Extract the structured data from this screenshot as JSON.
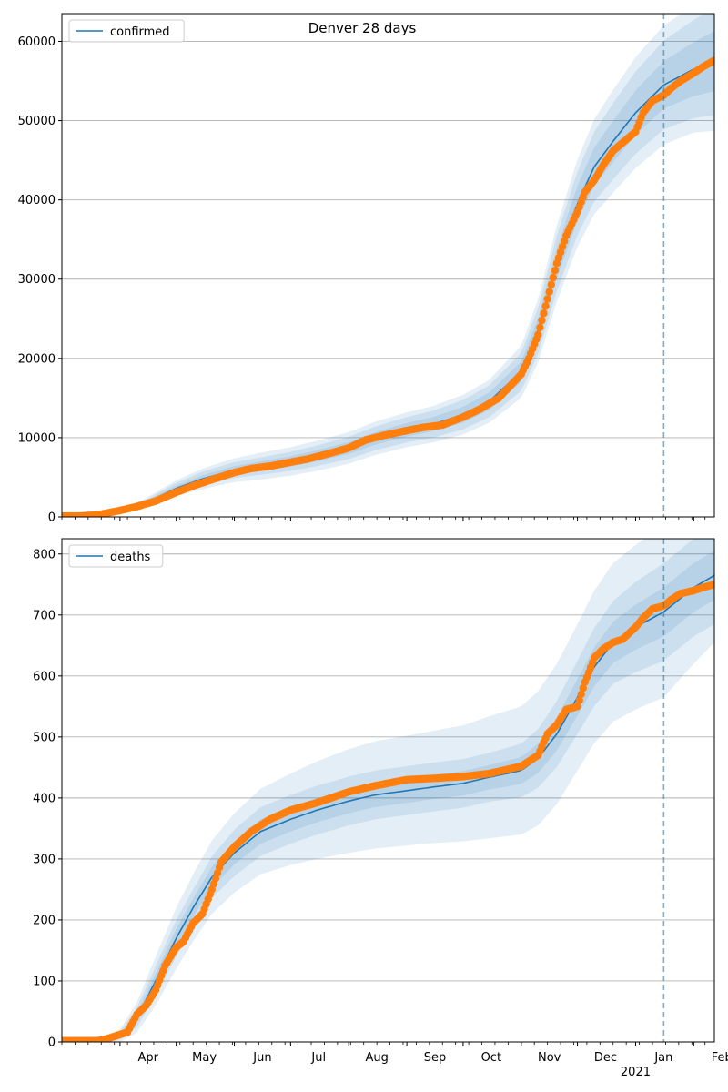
{
  "figure": {
    "title": "Denver 28 days",
    "forecast_start": "2021-01-16",
    "colors": {
      "model_line": "#1f77b4",
      "observed_points": "#ff7f0e",
      "band": "#1f77b4",
      "grid": "#b0b0b0",
      "forecast_line": "#1f77b4"
    }
  },
  "x_axis": {
    "range": [
      "2020-03-01",
      "2021-02-12"
    ],
    "month_ticks": [
      {
        "date": "2020-04-01",
        "label": "Apr"
      },
      {
        "date": "2020-05-01",
        "label": "May"
      },
      {
        "date": "2020-06-01",
        "label": "Jun"
      },
      {
        "date": "2020-07-01",
        "label": "Jul"
      },
      {
        "date": "2020-08-01",
        "label": "Aug"
      },
      {
        "date": "2020-09-01",
        "label": "Sep"
      },
      {
        "date": "2020-10-01",
        "label": "Oct"
      },
      {
        "date": "2020-11-01",
        "label": "Nov"
      },
      {
        "date": "2020-12-01",
        "label": "Dec"
      },
      {
        "date": "2021-01-01",
        "label": "Jan"
      },
      {
        "date": "2021-02-01",
        "label": "Feb"
      }
    ],
    "year_label": {
      "date": "2021-01-01",
      "label": "2021"
    }
  },
  "chart_data": [
    {
      "type": "line",
      "legend": "confirmed",
      "legend_position": "top-left",
      "grid": "horizontal",
      "ylim": [
        0,
        63500
      ],
      "yticks": [
        0,
        10000,
        20000,
        30000,
        40000,
        50000,
        60000
      ],
      "model": {
        "x": [
          "2020-03-01",
          "2020-03-15",
          "2020-04-01",
          "2020-04-15",
          "2020-05-01",
          "2020-05-15",
          "2020-06-01",
          "2020-06-15",
          "2020-07-01",
          "2020-07-15",
          "2020-08-01",
          "2020-08-15",
          "2020-09-01",
          "2020-09-15",
          "2020-10-01",
          "2020-10-15",
          "2020-11-01",
          "2020-11-10",
          "2020-11-20",
          "2020-12-01",
          "2020-12-10",
          "2020-12-20",
          "2021-01-01",
          "2021-01-16",
          "2021-02-01",
          "2021-02-12"
        ],
        "y": [
          0,
          100,
          700,
          1800,
          3600,
          4800,
          5900,
          6400,
          7000,
          7700,
          8700,
          9900,
          11000,
          11700,
          12900,
          14600,
          18300,
          23500,
          32000,
          39600,
          44200,
          47400,
          51000,
          54500,
          56500,
          57500
        ],
        "band_half_widths": [
          [
            0,
            30,
            100,
            200,
            350,
            450,
            500,
            600,
            650,
            700,
            750,
            800,
            850,
            900,
            1000,
            1100,
            1300,
            1600,
            1900,
            2200,
            2400,
            2600,
            2800,
            3000,
            3400,
            3800
          ],
          [
            0,
            60,
            200,
            400,
            700,
            900,
            1000,
            1100,
            1200,
            1300,
            1400,
            1500,
            1600,
            1700,
            1850,
            2000,
            2400,
            2900,
            3500,
            4000,
            4400,
            4800,
            5200,
            5600,
            6200,
            6800
          ],
          [
            0,
            90,
            300,
            600,
            1000,
            1300,
            1500,
            1700,
            1800,
            1900,
            2000,
            2100,
            2200,
            2300,
            2500,
            2700,
            3300,
            4000,
            4800,
            5500,
            6000,
            6500,
            7000,
            7500,
            8000,
            8800
          ]
        ]
      },
      "observed": {
        "x": [
          "2020-03-01",
          "2020-03-10",
          "2020-03-20",
          "2020-04-01",
          "2020-04-10",
          "2020-04-20",
          "2020-05-01",
          "2020-05-10",
          "2020-05-20",
          "2020-06-01",
          "2020-06-10",
          "2020-06-20",
          "2020-07-01",
          "2020-07-10",
          "2020-07-20",
          "2020-08-01",
          "2020-08-10",
          "2020-08-20",
          "2020-09-01",
          "2020-09-10",
          "2020-09-20",
          "2020-10-01",
          "2020-10-10",
          "2020-10-20",
          "2020-11-01",
          "2020-11-05",
          "2020-11-10",
          "2020-11-15",
          "2020-11-20",
          "2020-11-25",
          "2020-12-01",
          "2020-12-05",
          "2020-12-10",
          "2020-12-15",
          "2020-12-20",
          "2020-12-25",
          "2021-01-01",
          "2021-01-05",
          "2021-01-10",
          "2021-01-16",
          "2021-01-20",
          "2021-01-25",
          "2021-02-01",
          "2021-02-06",
          "2021-02-12"
        ],
        "y": [
          100,
          100,
          250,
          800,
          1300,
          2000,
          3100,
          3900,
          4700,
          5600,
          6100,
          6400,
          6900,
          7300,
          7900,
          8700,
          9700,
          10300,
          10900,
          11300,
          11600,
          12600,
          13600,
          15000,
          18000,
          20000,
          23000,
          27500,
          32000,
          35500,
          38500,
          41000,
          42500,
          44500,
          46200,
          47200,
          48600,
          51000,
          52500,
          53200,
          54100,
          55000,
          56000,
          56800,
          57600
        ]
      }
    },
    {
      "type": "line",
      "legend": "deaths",
      "legend_position": "top-left",
      "grid": "horizontal",
      "ylim": [
        0,
        825
      ],
      "yticks": [
        0,
        100,
        200,
        300,
        400,
        500,
        600,
        700,
        800
      ],
      "model": {
        "x": [
          "2020-03-01",
          "2020-03-20",
          "2020-04-01",
          "2020-04-10",
          "2020-04-20",
          "2020-05-01",
          "2020-05-10",
          "2020-05-20",
          "2020-06-01",
          "2020-06-15",
          "2020-07-01",
          "2020-07-15",
          "2020-08-01",
          "2020-08-15",
          "2020-09-01",
          "2020-09-15",
          "2020-10-01",
          "2020-10-15",
          "2020-11-01",
          "2020-11-10",
          "2020-11-20",
          "2020-12-01",
          "2020-12-10",
          "2020-12-20",
          "2021-01-01",
          "2021-01-16",
          "2021-02-01",
          "2021-02-12"
        ],
        "y": [
          0,
          2,
          10,
          40,
          100,
          170,
          220,
          270,
          310,
          345,
          365,
          380,
          395,
          405,
          412,
          418,
          424,
          434,
          445,
          465,
          505,
          565,
          615,
          655,
          680,
          705,
          745,
          765
        ],
        "band_half_widths": [
          [
            0,
            1,
            3,
            8,
            12,
            15,
            15,
            17,
            19,
            20,
            20,
            20,
            20,
            20,
            20,
            20,
            20,
            20,
            22,
            24,
            27,
            30,
            32,
            34,
            37,
            40,
            40,
            40
          ],
          [
            0,
            2,
            6,
            16,
            24,
            30,
            30,
            34,
            38,
            40,
            40,
            40,
            40,
            40,
            40,
            40,
            40,
            40,
            44,
            48,
            54,
            60,
            64,
            68,
            74,
            80,
            80,
            80
          ],
          [
            0,
            3,
            10,
            25,
            40,
            50,
            55,
            60,
            65,
            70,
            75,
            80,
            85,
            88,
            90,
            92,
            95,
            100,
            105,
            110,
            115,
            120,
            125,
            130,
            135,
            140,
            125,
            110
          ]
        ]
      },
      "observed": {
        "x": [
          "2020-03-01",
          "2020-03-10",
          "2020-03-20",
          "2020-03-25",
          "2020-04-01",
          "2020-04-05",
          "2020-04-10",
          "2020-04-15",
          "2020-04-20",
          "2020-04-25",
          "2020-05-01",
          "2020-05-05",
          "2020-05-10",
          "2020-05-15",
          "2020-05-20",
          "2020-05-25",
          "2020-06-01",
          "2020-06-10",
          "2020-06-20",
          "2020-07-01",
          "2020-07-15",
          "2020-08-01",
          "2020-08-15",
          "2020-09-01",
          "2020-09-15",
          "2020-10-01",
          "2020-10-15",
          "2020-11-01",
          "2020-11-10",
          "2020-11-15",
          "2020-11-20",
          "2020-11-25",
          "2020-12-01",
          "2020-12-05",
          "2020-12-10",
          "2020-12-15",
          "2020-12-20",
          "2020-12-25",
          "2021-01-01",
          "2021-01-05",
          "2021-01-10",
          "2021-01-16",
          "2021-01-20",
          "2021-01-25",
          "2021-02-01",
          "2021-02-06",
          "2021-02-12"
        ],
        "y": [
          2,
          2,
          2,
          5,
          12,
          16,
          45,
          60,
          85,
          125,
          155,
          165,
          195,
          210,
          250,
          295,
          320,
          345,
          365,
          380,
          392,
          410,
          420,
          430,
          432,
          435,
          440,
          452,
          470,
          505,
          520,
          545,
          550,
          590,
          630,
          645,
          655,
          660,
          680,
          695,
          710,
          715,
          725,
          735,
          740,
          745,
          750
        ]
      }
    }
  ]
}
